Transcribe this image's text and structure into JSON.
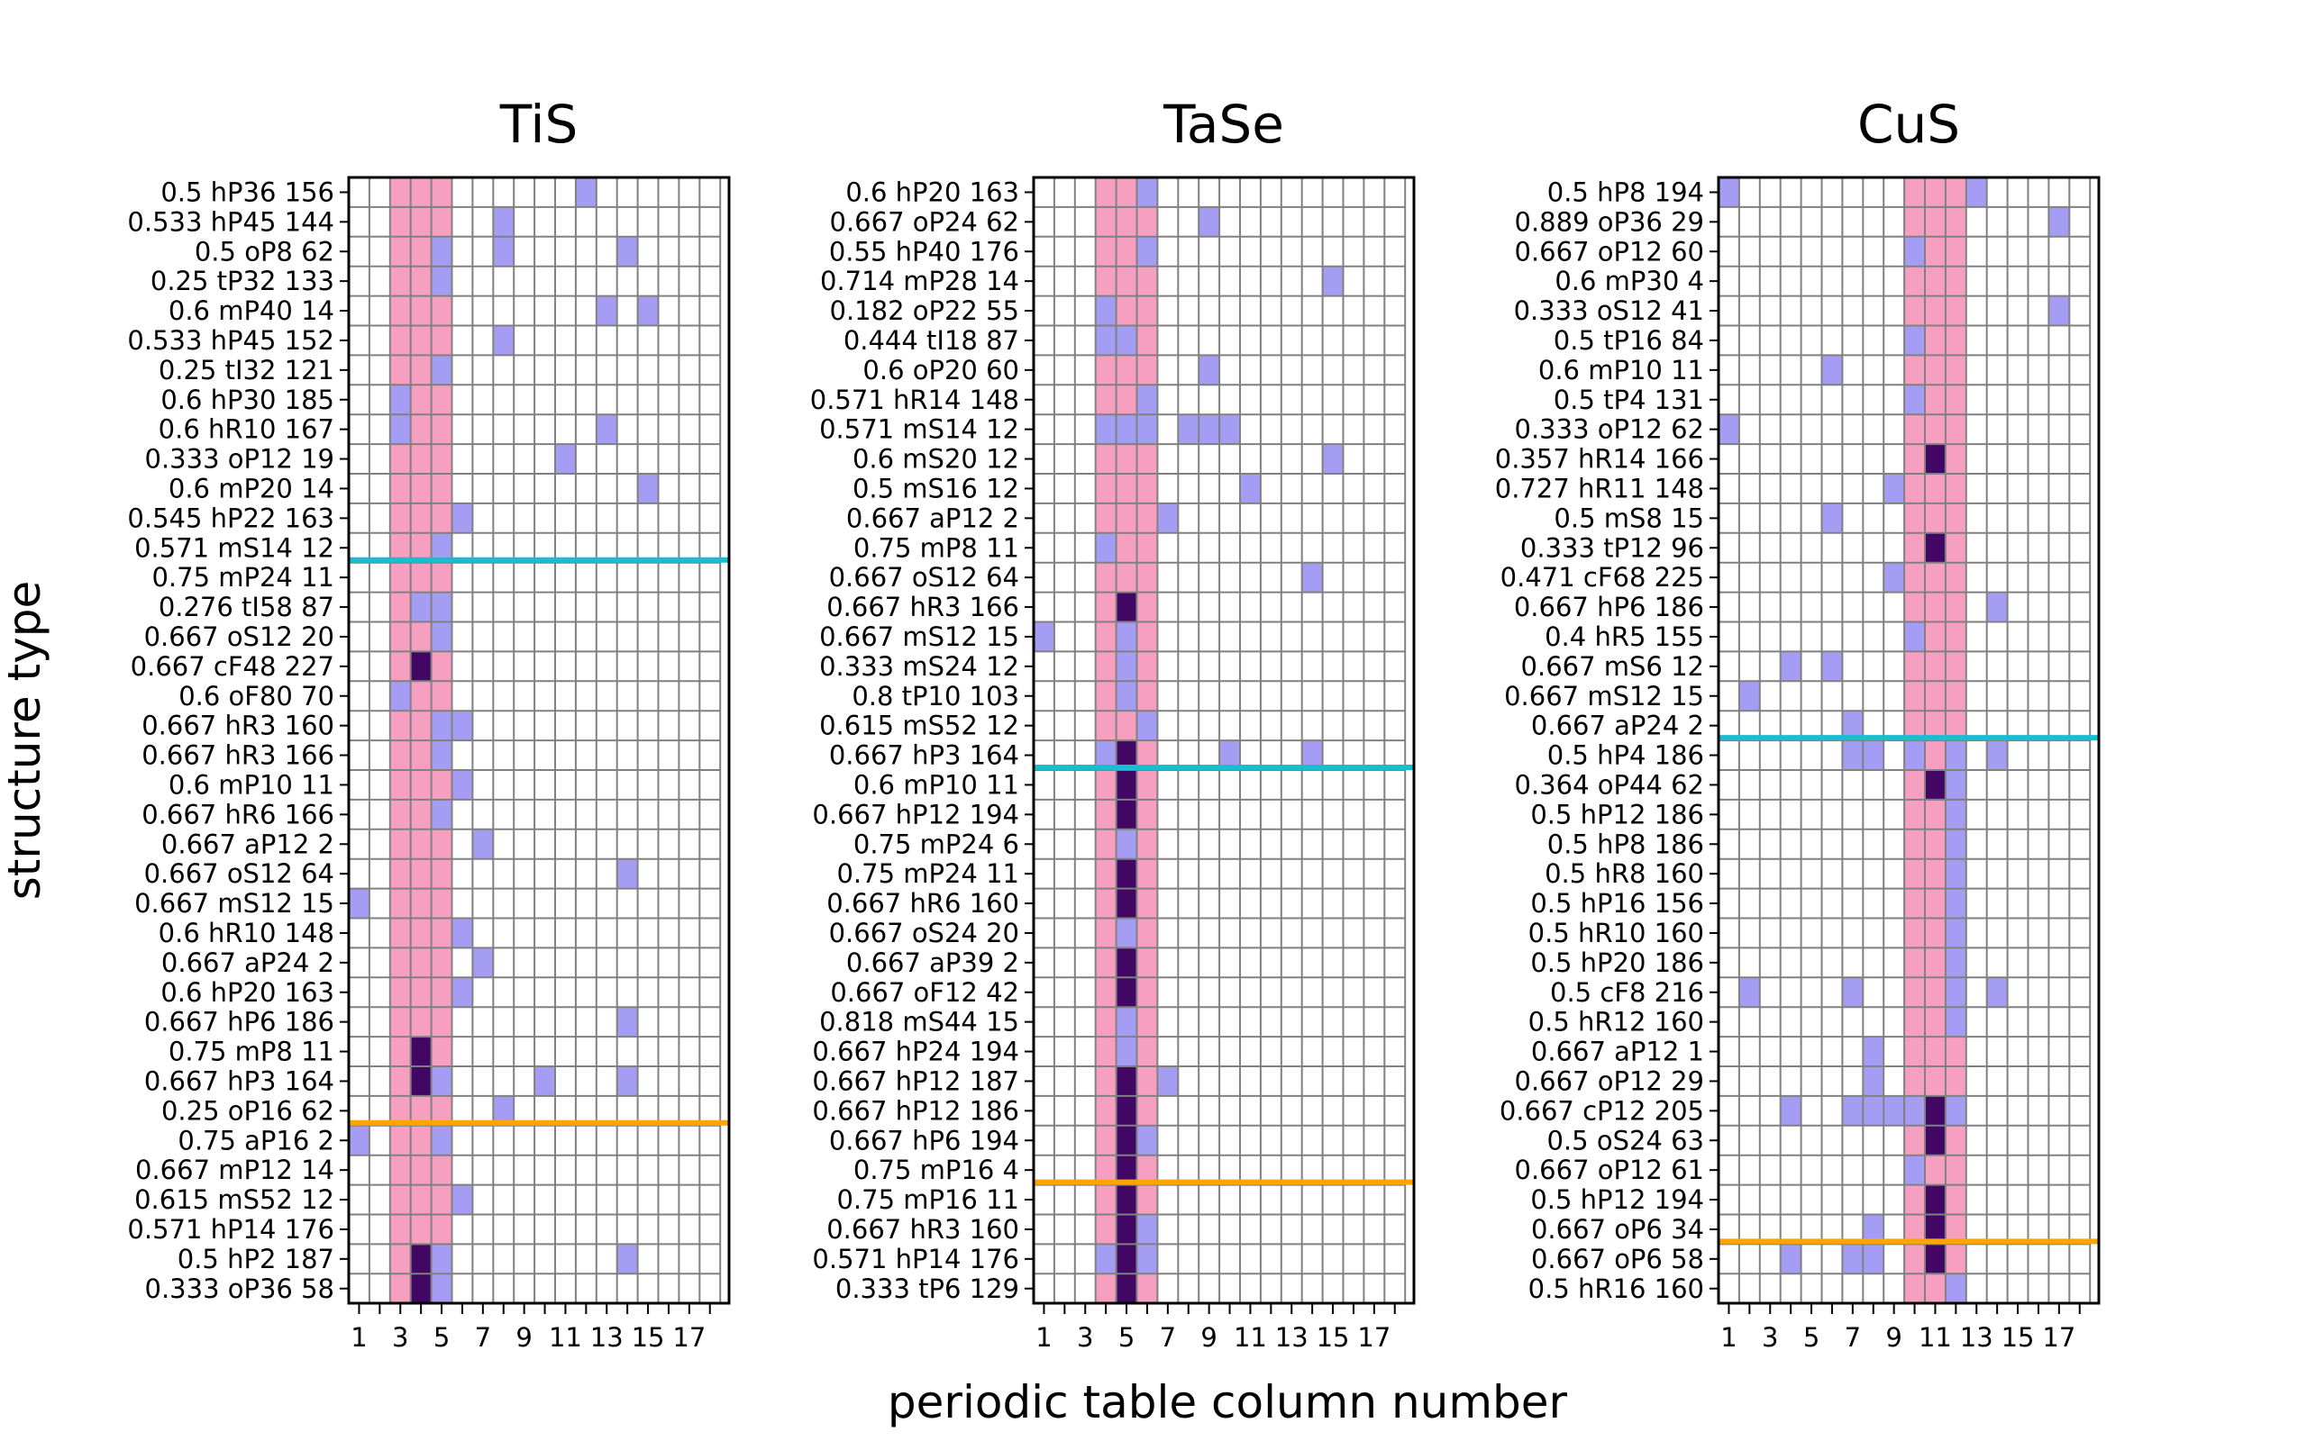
{
  "chart_data": {
    "type": "heatmap",
    "xlabel": "periodic table column number",
    "ylabel": "structure type",
    "x_range": [
      1,
      18
    ],
    "x_ticks": [
      1,
      3,
      5,
      7,
      9,
      11,
      13,
      15,
      17
    ],
    "colors": {
      "highlight_band": "#f79fc1",
      "cell_light": "#a59df3",
      "cell_dark": "#420765",
      "grid": "#808080",
      "line_upper": "#17becf",
      "line_lower": "#ffa500"
    },
    "panels": [
      {
        "title": "TiS",
        "highlight_columns": [
          3,
          4,
          5
        ],
        "rows": [
          "0.5 hP36 156",
          "0.533 hP45 144",
          "0.5 oP8 62",
          "0.25 tP32 133",
          "0.6 mP40 14",
          "0.533 hP45 152",
          "0.25 tI32 121",
          "0.6 hP30 185",
          "0.6 hR10 167",
          "0.333 oP12 19",
          "0.6 mP20 14",
          "0.545 hP22 163",
          "0.571 mS14 12",
          "0.75 mP24 11",
          "0.276 tI58 87",
          "0.667 oS12 20",
          "0.667 cF48 227",
          "0.6 oF80 70",
          "0.667 hR3 160",
          "0.667 hR3 166",
          "0.6 mP10 11",
          "0.667 hR6 166",
          "0.667 aP12 2",
          "0.667 oS12 64",
          "0.667 mS12 15",
          "0.6 hR10 148",
          "0.667 aP24 2",
          "0.6 hP20 163",
          "0.667 hP6 186",
          "0.75 mP8 11",
          "0.667 hP3 164",
          "0.25 oP16 62",
          "0.75 aP16 2",
          "0.667 mP12 14",
          "0.615 mS52 12",
          "0.571 hP14 176",
          "0.5 hP2 187",
          "0.333 oP36 58"
        ],
        "cells_light": [
          [
            0,
            12
          ],
          [
            1,
            8
          ],
          [
            2,
            5
          ],
          [
            2,
            8
          ],
          [
            2,
            14
          ],
          [
            3,
            5
          ],
          [
            4,
            13
          ],
          [
            4,
            15
          ],
          [
            5,
            8
          ],
          [
            6,
            5
          ],
          [
            7,
            3
          ],
          [
            8,
            3
          ],
          [
            8,
            13
          ],
          [
            9,
            11
          ],
          [
            10,
            15
          ],
          [
            11,
            6
          ],
          [
            12,
            5
          ],
          [
            14,
            4
          ],
          [
            14,
            5
          ],
          [
            15,
            5
          ],
          [
            17,
            3
          ],
          [
            18,
            5
          ],
          [
            18,
            6
          ],
          [
            19,
            5
          ],
          [
            20,
            6
          ],
          [
            21,
            5
          ],
          [
            22,
            7
          ],
          [
            23,
            14
          ],
          [
            24,
            1
          ],
          [
            25,
            6
          ],
          [
            26,
            7
          ],
          [
            27,
            6
          ],
          [
            28,
            14
          ],
          [
            30,
            5
          ],
          [
            30,
            10
          ],
          [
            30,
            14
          ],
          [
            31,
            8
          ],
          [
            32,
            1
          ],
          [
            32,
            5
          ],
          [
            34,
            6
          ],
          [
            36,
            5
          ],
          [
            36,
            14
          ],
          [
            37,
            5
          ]
        ],
        "cells_dark": [
          [
            16,
            4
          ],
          [
            29,
            4
          ],
          [
            30,
            4
          ],
          [
            36,
            4
          ],
          [
            37,
            4
          ]
        ],
        "line_upper_after_row": 12,
        "line_lower_after_row": 31
      },
      {
        "title": "TaSe",
        "highlight_columns": [
          4,
          5,
          6
        ],
        "rows": [
          "0.6 hP20 163",
          "0.667 oP24 62",
          "0.55 hP40 176",
          "0.714 mP28 14",
          "0.182 oP22 55",
          "0.444 tI18 87",
          "0.6 oP20 60",
          "0.571 hR14 148",
          "0.571 mS14 12",
          "0.6 mS20 12",
          "0.5 mS16 12",
          "0.667 aP12 2",
          "0.75 mP8 11",
          "0.667 oS12 64",
          "0.667 hR3 166",
          "0.667 mS12 15",
          "0.333 mS24 12",
          "0.8 tP10 103",
          "0.615 mS52 12",
          "0.667 hP3 164",
          "0.6 mP10 11",
          "0.667 hP12 194",
          "0.75 mP24 6",
          "0.75 mP24 11",
          "0.667 hR6 160",
          "0.667 oS24 20",
          "0.667 aP39 2",
          "0.667 oF12 42",
          "0.818 mS44 15",
          "0.667 hP24 194",
          "0.667 hP12 187",
          "0.667 hP12 186",
          "0.667 hP6 194",
          "0.75 mP16 4",
          "0.75 mP16 11",
          "0.667 hR3 160",
          "0.571 hP14 176",
          "0.333 tP6 129"
        ],
        "cells_light": [
          [
            0,
            6
          ],
          [
            1,
            9
          ],
          [
            2,
            6
          ],
          [
            3,
            15
          ],
          [
            4,
            4
          ],
          [
            5,
            4
          ],
          [
            5,
            5
          ],
          [
            6,
            9
          ],
          [
            7,
            6
          ],
          [
            8,
            4
          ],
          [
            8,
            5
          ],
          [
            8,
            6
          ],
          [
            8,
            8
          ],
          [
            8,
            9
          ],
          [
            8,
            10
          ],
          [
            9,
            15
          ],
          [
            10,
            11
          ],
          [
            11,
            7
          ],
          [
            12,
            4
          ],
          [
            13,
            14
          ],
          [
            15,
            1
          ],
          [
            15,
            5
          ],
          [
            16,
            5
          ],
          [
            17,
            5
          ],
          [
            18,
            6
          ],
          [
            19,
            4
          ],
          [
            19,
            10
          ],
          [
            19,
            14
          ],
          [
            22,
            5
          ],
          [
            25,
            5
          ],
          [
            28,
            5
          ],
          [
            29,
            5
          ],
          [
            30,
            7
          ],
          [
            32,
            6
          ],
          [
            35,
            6
          ],
          [
            36,
            4
          ],
          [
            36,
            6
          ]
        ],
        "cells_dark": [
          [
            14,
            5
          ],
          [
            19,
            5
          ],
          [
            20,
            5
          ],
          [
            21,
            5
          ],
          [
            23,
            5
          ],
          [
            24,
            5
          ],
          [
            26,
            5
          ],
          [
            27,
            5
          ],
          [
            30,
            5
          ],
          [
            31,
            5
          ],
          [
            32,
            5
          ],
          [
            33,
            5
          ],
          [
            34,
            5
          ],
          [
            35,
            5
          ],
          [
            36,
            5
          ],
          [
            37,
            5
          ]
        ],
        "line_upper_after_row": 19,
        "line_lower_after_row": 33
      },
      {
        "title": "CuS",
        "highlight_columns": [
          10,
          11,
          12
        ],
        "rows": [
          "0.5 hP8 194",
          "0.889 oP36 29",
          "0.667 oP12 60",
          "0.6 mP30 4",
          "0.333 oS12 41",
          "0.5 tP16 84",
          "0.6 mP10 11",
          "0.5 tP4 131",
          "0.333 oP12 62",
          "0.357 hR14 166",
          "0.727 hR11 148",
          "0.5 mS8 15",
          "0.333 tP12 96",
          "0.471 cF68 225",
          "0.667 hP6 186",
          "0.4 hR5 155",
          "0.667 mS6 12",
          "0.667 mS12 15",
          "0.667 aP24 2",
          "0.5 hP4 186",
          "0.364 oP44 62",
          "0.5 hP12 186",
          "0.5 hP8 186",
          "0.5 hR8 160",
          "0.5 hP16 156",
          "0.5 hR10 160",
          "0.5 hP20 186",
          "0.5 cF8 216",
          "0.5 hR12 160",
          "0.667 aP12 1",
          "0.667 oP12 29",
          "0.667 cP12 205",
          "0.5 oS24 63",
          "0.667 oP12 61",
          "0.5 hP12 194",
          "0.667 oP6 34",
          "0.667 oP6 58",
          "0.5 hR16 160"
        ],
        "cells_light": [
          [
            0,
            1
          ],
          [
            0,
            13
          ],
          [
            1,
            17
          ],
          [
            2,
            10
          ],
          [
            4,
            17
          ],
          [
            5,
            10
          ],
          [
            6,
            6
          ],
          [
            7,
            10
          ],
          [
            8,
            1
          ],
          [
            10,
            9
          ],
          [
            11,
            6
          ],
          [
            13,
            9
          ],
          [
            14,
            14
          ],
          [
            15,
            10
          ],
          [
            16,
            4
          ],
          [
            16,
            6
          ],
          [
            17,
            2
          ],
          [
            18,
            7
          ],
          [
            19,
            7
          ],
          [
            19,
            8
          ],
          [
            19,
            10
          ],
          [
            19,
            12
          ],
          [
            19,
            14
          ],
          [
            20,
            12
          ],
          [
            21,
            12
          ],
          [
            22,
            12
          ],
          [
            23,
            12
          ],
          [
            24,
            12
          ],
          [
            25,
            12
          ],
          [
            26,
            12
          ],
          [
            27,
            2
          ],
          [
            27,
            7
          ],
          [
            27,
            12
          ],
          [
            27,
            14
          ],
          [
            28,
            12
          ],
          [
            29,
            8
          ],
          [
            30,
            8
          ],
          [
            31,
            4
          ],
          [
            31,
            7
          ],
          [
            31,
            8
          ],
          [
            31,
            9
          ],
          [
            31,
            10
          ],
          [
            31,
            12
          ],
          [
            33,
            10
          ],
          [
            35,
            8
          ],
          [
            36,
            4
          ],
          [
            36,
            7
          ],
          [
            36,
            8
          ],
          [
            37,
            12
          ]
        ],
        "cells_dark": [
          [
            9,
            11
          ],
          [
            12,
            11
          ],
          [
            20,
            11
          ],
          [
            31,
            11
          ],
          [
            32,
            11
          ],
          [
            34,
            11
          ],
          [
            35,
            11
          ],
          [
            36,
            11
          ]
        ],
        "line_upper_after_row": 18,
        "line_lower_after_row": 35
      }
    ]
  }
}
